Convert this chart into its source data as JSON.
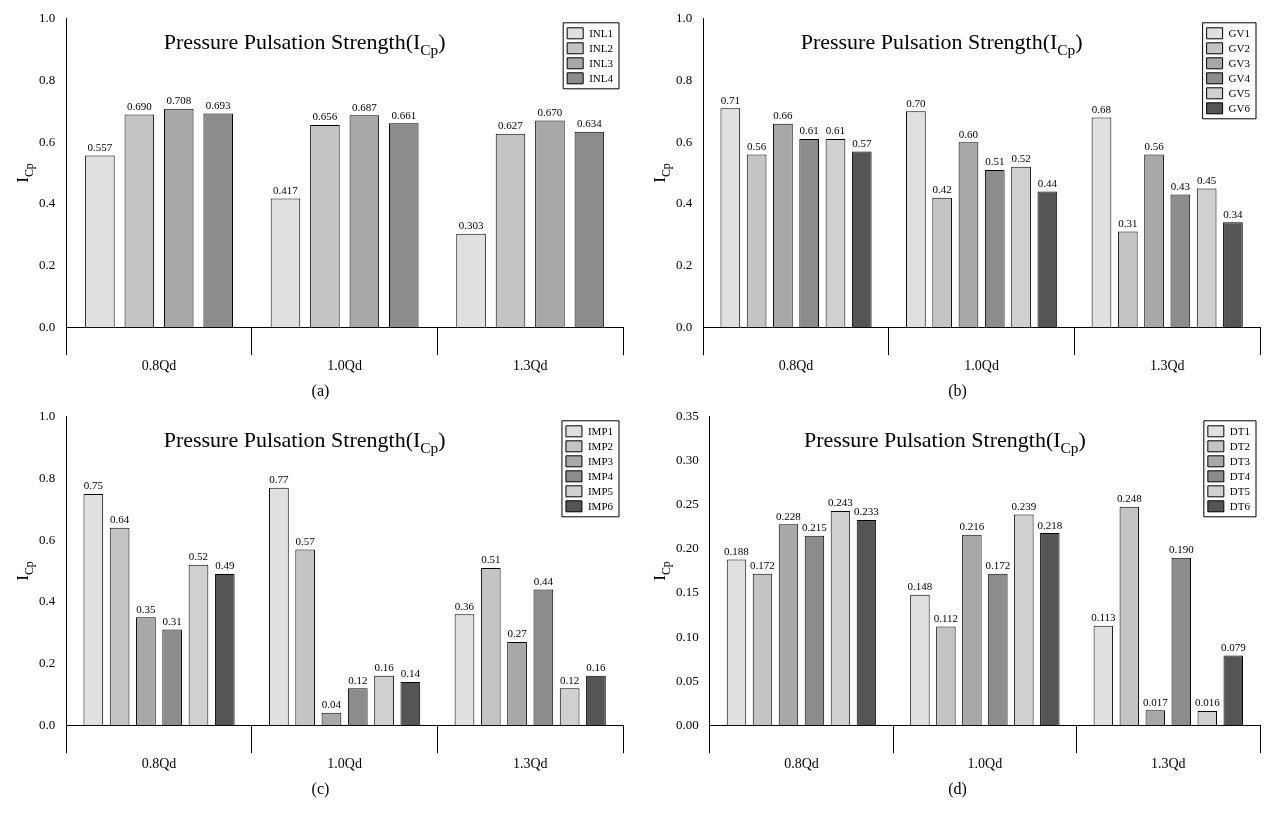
{
  "chart_data": [
    {
      "type": "bar",
      "title": "Pressure Pulsation Strength(I$_{Cp}$)",
      "ylabel": "I$_{Cp}$",
      "categories": [
        "0.8Qd",
        "1.0Qd",
        "1.3Qd"
      ],
      "ylim": [
        0,
        1
      ],
      "yticks": [
        {
          "value": 0,
          "label": "0.0"
        },
        {
          "value": 0.2,
          "label": "0.2"
        },
        {
          "value": 0.4,
          "label": "0.4"
        },
        {
          "value": 0.6,
          "label": "0.6"
        },
        {
          "value": 0.8,
          "label": "0.8"
        },
        {
          "value": 1,
          "label": "1.0"
        }
      ],
      "legend": "top right",
      "annotations": [
        "(a)"
      ],
      "series": [
        {
          "name": "INL1",
          "color": "#e0e0e0",
          "values": [
            0.557,
            0.417,
            0.303
          ],
          "value_labels": [
            "0.557",
            "0.417",
            "0.303"
          ]
        },
        {
          "name": "INL2",
          "color": "#c4c4c4",
          "values": [
            0.69,
            0.656,
            0.627
          ],
          "value_labels": [
            "0.690",
            "0.656",
            "0.627"
          ]
        },
        {
          "name": "INL3",
          "color": "#a8a8a8",
          "values": [
            0.708,
            0.687,
            0.67
          ],
          "value_labels": [
            "0.708",
            "0.687",
            "0.670"
          ]
        },
        {
          "name": "INL4",
          "color": "#8c8c8c",
          "values": [
            0.693,
            0.661,
            0.634
          ],
          "value_labels": [
            "0.693",
            "0.661",
            "0.634"
          ]
        }
      ]
    },
    {
      "type": "bar",
      "title": "Pressure Pulsation Strength(I$_{Cp}$)",
      "ylabel": "I$_{Cp}$",
      "categories": [
        "0.8Qd",
        "1.0Qd",
        "1.3Qd"
      ],
      "ylim": [
        0,
        1
      ],
      "yticks": [
        {
          "value": 0,
          "label": "0.0"
        },
        {
          "value": 0.2,
          "label": "0.2"
        },
        {
          "value": 0.4,
          "label": "0.4"
        },
        {
          "value": 0.6,
          "label": "0.6"
        },
        {
          "value": 0.8,
          "label": "0.8"
        },
        {
          "value": 1,
          "label": "1.0"
        }
      ],
      "legend": "top right",
      "annotations": [
        "(b)"
      ],
      "series": [
        {
          "name": "GV1",
          "color": "#e0e0e0",
          "values": [
            0.71,
            0.7,
            0.68
          ],
          "value_labels": [
            "0.71",
            "0.70",
            "0.68"
          ]
        },
        {
          "name": "GV2",
          "color": "#c4c4c4",
          "values": [
            0.56,
            0.42,
            0.31
          ],
          "value_labels": [
            "0.56",
            "0.42",
            "0.31"
          ]
        },
        {
          "name": "GV3",
          "color": "#a8a8a8",
          "values": [
            0.66,
            0.6,
            0.56
          ],
          "value_labels": [
            "0.66",
            "0.60",
            "0.56"
          ]
        },
        {
          "name": "GV4",
          "color": "#8c8c8c",
          "values": [
            0.61,
            0.51,
            0.43
          ],
          "value_labels": [
            "0.61",
            "0.51",
            "0.43"
          ]
        },
        {
          "name": "GV5",
          "color": "#d0d0d0",
          "values": [
            0.61,
            0.52,
            0.45
          ],
          "value_labels": [
            "0.61",
            "0.52",
            "0.45"
          ]
        },
        {
          "name": "GV6",
          "color": "#555555",
          "values": [
            0.57,
            0.44,
            0.34
          ],
          "value_labels": [
            "0.57",
            "0.44",
            "0.34"
          ]
        }
      ]
    },
    {
      "type": "bar",
      "title": "Pressure Pulsation Strength(I$_{Cp}$)",
      "ylabel": "I$_{Cp}$",
      "categories": [
        "0.8Qd",
        "1.0Qd",
        "1.3Qd"
      ],
      "ylim": [
        0,
        1
      ],
      "yticks": [
        {
          "value": 0,
          "label": "0.0"
        },
        {
          "value": 0.2,
          "label": "0.2"
        },
        {
          "value": 0.4,
          "label": "0.4"
        },
        {
          "value": 0.6,
          "label": "0.6"
        },
        {
          "value": 0.8,
          "label": "0.8"
        },
        {
          "value": 1,
          "label": "1.0"
        }
      ],
      "legend": "top right",
      "annotations": [
        "(c)"
      ],
      "data_labels": true,
      "series": [
        {
          "name": "IMP1",
          "color": "#e0e0e0",
          "values": [
            0.75,
            0.77,
            0.36
          ]
        },
        {
          "name": "IMP2",
          "color": "#c4c4c4",
          "values": [
            0.64,
            0.57,
            0.51
          ]
        },
        {
          "name": "IMP3",
          "color": "#a8a8a8",
          "values": [
            0.35,
            0.04,
            0.27
          ]
        },
        {
          "name": "IMP4",
          "color": "#8c8c8c",
          "values": [
            0.31,
            0.12,
            0.44
          ]
        },
        {
          "name": "IMP5",
          "color": "#d0d0d0",
          "values": [
            0.52,
            0.16,
            0.12
          ]
        },
        {
          "name": "IMP6",
          "color": "#555555",
          "values": [
            0.49,
            0.14,
            0.16
          ]
        }
      ]
    },
    {
      "type": "bar",
      "title": "Pressure Pulsation Strength(I$_{Cp}$)",
      "ylabel": "I$_{Cp}$",
      "categories": [
        "0.8Qd",
        "1.0Qd",
        "1.3Qd"
      ],
      "ylim": [
        0,
        0.35
      ],
      "yticks": [
        {
          "value": 0,
          "label": "0.00"
        },
        {
          "value": 0.05,
          "label": "0.05"
        },
        {
          "value": 0.1,
          "label": "0.10"
        },
        {
          "value": 0.15,
          "label": "0.15"
        },
        {
          "value": 0.2,
          "label": "0.20"
        },
        {
          "value": 0.25,
          "label": "0.25"
        },
        {
          "value": 0.3,
          "label": "0.30"
        },
        {
          "value": 0.35,
          "label": "0.35"
        }
      ],
      "legend": "top right",
      "annotations": [
        "(d)"
      ],
      "series": [
        {
          "name": "DT1",
          "color": "#e0e0e0",
          "values": [
            0.188,
            0.148,
            0.113
          ],
          "value_labels": [
            "0.188",
            "0.148",
            "0.113"
          ]
        },
        {
          "name": "DT2",
          "color": "#c4c4c4",
          "values": [
            0.172,
            0.112,
            0.248
          ],
          "value_labels": [
            "0.172",
            "0.112",
            "0.248"
          ]
        },
        {
          "name": "DT3",
          "color": "#a8a8a8",
          "values": [
            0.228,
            0.216,
            0.017
          ],
          "value_labels": [
            "0.228",
            "0.216",
            "0.017"
          ]
        },
        {
          "name": "DT4",
          "color": "#8c8c8c",
          "values": [
            0.215,
            0.172,
            0.19
          ],
          "value_labels": [
            "0.215",
            "0.172",
            "0.190"
          ]
        },
        {
          "name": "DT5",
          "color": "#d0d0d0",
          "values": [
            0.243,
            0.239,
            0.016
          ],
          "value_labels": [
            "0.243",
            "0.239",
            "0.016"
          ]
        },
        {
          "name": "DT6",
          "color": "#555555",
          "values": [
            0.233,
            0.218,
            0.079
          ],
          "value_labels": [
            "0.233",
            "0.218",
            "0.079"
          ]
        }
      ]
    }
  ]
}
